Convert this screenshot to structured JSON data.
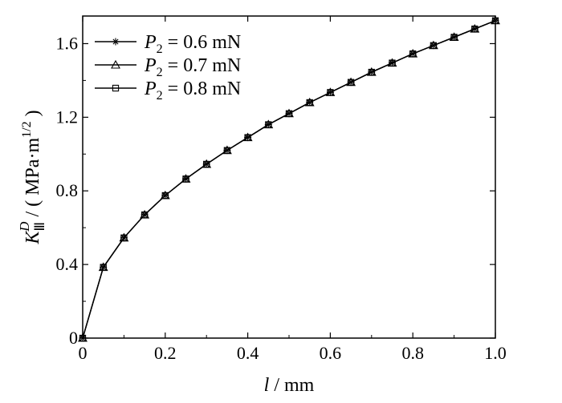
{
  "chart_data": {
    "type": "line",
    "xlabel": {
      "var": "l",
      "sep": " / ",
      "unit": "mm"
    },
    "ylabel": {
      "symbol": "K",
      "sub": "Ⅲ",
      "sup": "D",
      "sep": " / ( ",
      "unit": "MPa·m",
      "unit_sup": "1/2",
      "close": " )"
    },
    "xlim": [
      0,
      1.0
    ],
    "ylim": [
      0,
      1.75
    ],
    "x_ticks": [
      "0",
      "0.2",
      "0.4",
      "0.6",
      "0.8",
      "1.0"
    ],
    "y_ticks": [
      "0",
      "0.4",
      "0.8",
      "1.2",
      "1.6"
    ],
    "x": [
      0,
      0.05,
      0.1,
      0.15,
      0.2,
      0.25,
      0.3,
      0.35,
      0.4,
      0.45,
      0.5,
      0.55,
      0.6,
      0.65,
      0.7,
      0.75,
      0.8,
      0.85,
      0.9,
      0.95,
      1.0
    ],
    "series": [
      {
        "name_var": "P",
        "name_sub": "2",
        "name_rest": " = 0.6 mN",
        "marker": "star",
        "values": [
          0,
          0.385,
          0.545,
          0.67,
          0.775,
          0.865,
          0.945,
          1.02,
          1.09,
          1.16,
          1.22,
          1.28,
          1.335,
          1.39,
          1.445,
          1.495,
          1.545,
          1.59,
          1.635,
          1.68,
          1.725
        ]
      },
      {
        "name_var": "P",
        "name_sub": "2",
        "name_rest": " = 0.7 mN",
        "marker": "triangle",
        "values": [
          0,
          0.385,
          0.545,
          0.67,
          0.775,
          0.865,
          0.945,
          1.02,
          1.09,
          1.16,
          1.22,
          1.28,
          1.335,
          1.39,
          1.445,
          1.495,
          1.545,
          1.59,
          1.635,
          1.68,
          1.725
        ]
      },
      {
        "name_var": "P",
        "name_sub": "2",
        "name_rest": " = 0.8 mN",
        "marker": "square",
        "values": [
          0,
          0.385,
          0.545,
          0.67,
          0.775,
          0.865,
          0.945,
          1.02,
          1.09,
          1.16,
          1.22,
          1.28,
          1.335,
          1.39,
          1.445,
          1.495,
          1.545,
          1.59,
          1.635,
          1.68,
          1.725
        ]
      }
    ],
    "legend_position": "top-left",
    "grid": false,
    "line_color": "#000000"
  }
}
